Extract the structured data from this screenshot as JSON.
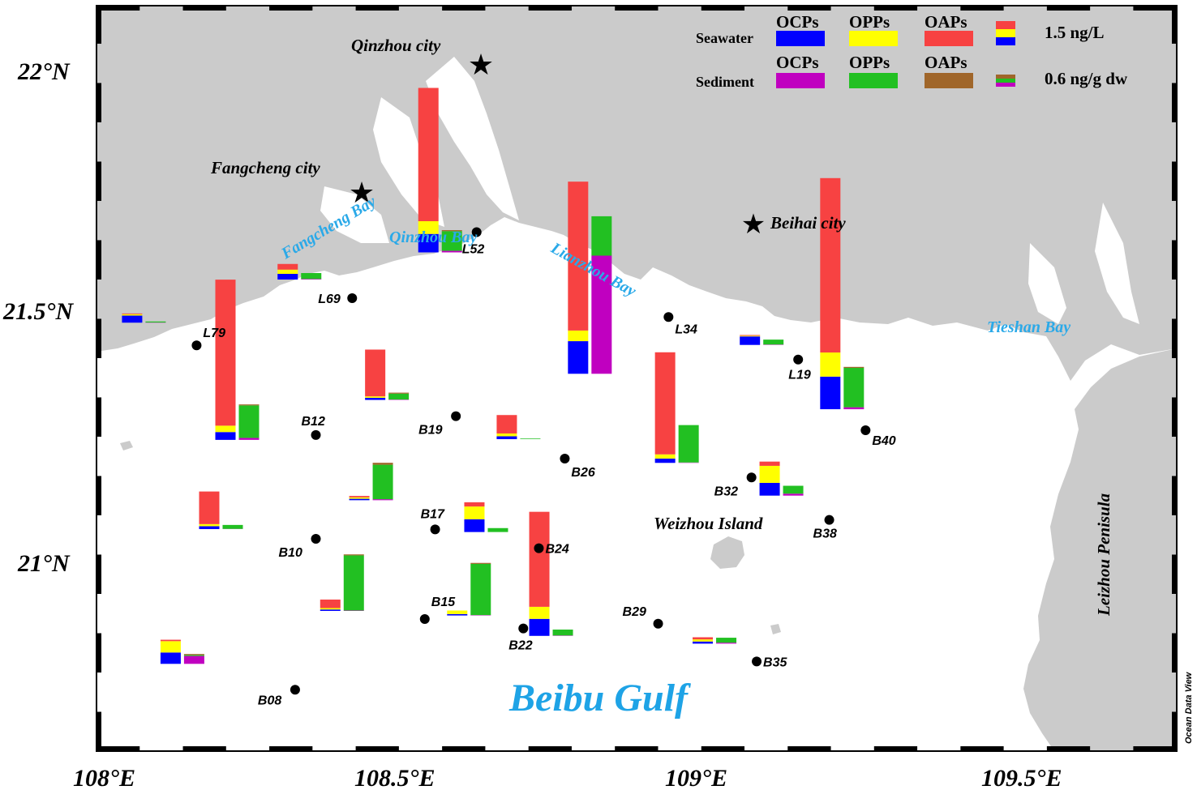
{
  "map": {
    "title_gulf": "Beibu Gulf",
    "watermark": "Ocean Data View",
    "lon_labels": [
      "108°E",
      "108.5°E",
      "109°E",
      "109.5°E"
    ],
    "lat_labels": [
      "22°N",
      "21.5°N",
      "21°N"
    ],
    "lon_ticks": [
      108.0,
      108.5,
      109.0,
      109.5
    ],
    "lat_ticks": [
      22.0,
      21.5,
      21.0
    ],
    "extent": {
      "lon_min": 107.917,
      "lon_max": 110.0,
      "lat_min": 20.6,
      "lat_max": 22.18
    },
    "colors": {
      "land": "#cbcbcb",
      "sea": "#ffffff",
      "bay_label": "#2aa9e8",
      "gulf_label": "#1ea3e6"
    }
  },
  "cities": [
    {
      "name": "Qinzhou city",
      "lon": 108.62,
      "lat": 22.01
    },
    {
      "name": "Fangcheng city",
      "lon": 108.41,
      "lat": 21.74
    },
    {
      "name": "Beihai city",
      "lon": 109.08,
      "lat": 21.67
    }
  ],
  "places": {
    "bays": [
      "Fangcheng Bay",
      "Qinzhou Bay",
      "Lianzhou Bay",
      "Tieshan Bay"
    ],
    "island": "Weizhou Island",
    "peninsula": "Leizhou Penisula"
  },
  "legend": {
    "headers": [
      "OCPs",
      "OPPs",
      "OAPs"
    ],
    "rows": [
      {
        "label": "Seawater",
        "swatches": [
          "#0000ff",
          "#ffff00",
          "#f74242"
        ],
        "scale": "1.5 ng/L"
      },
      {
        "label": "Sediment",
        "swatches": [
          "#c000c0",
          "#22c022",
          "#a0662a"
        ],
        "scale": "0.6 ng/g dw"
      }
    ]
  },
  "chart_data": {
    "type": "bar",
    "units": {
      "seawater": "ng/L",
      "sediment": "ng/g dw"
    },
    "components": [
      "OCPs",
      "OPPs",
      "OAPs"
    ],
    "stations": [
      {
        "id": "L79",
        "lon": 108.11,
        "lat": 21.46,
        "seawater": [
          0.5,
          0.1,
          0.05
        ],
        "sediment": [
          0.01,
          0.05,
          0.0
        ]
      },
      {
        "id": "L69",
        "lon": 108.41,
        "lat": 21.56,
        "seawater": [
          0.4,
          0.3,
          0.4
        ],
        "sediment": [
          0.03,
          0.3,
          0.0
        ]
      },
      {
        "id": "L52",
        "lon": 108.65,
        "lat": 21.7,
        "seawater": [
          1.3,
          0.9,
          9.4
        ],
        "sediment": [
          0.08,
          1.0,
          0.05
        ]
      },
      {
        "id": "L34",
        "lon": 109.02,
        "lat": 21.52,
        "seawater": [
          2.3,
          0.75,
          10.5
        ],
        "sediment": [
          6.0,
          2.0,
          0.0
        ]
      },
      {
        "id": "L19",
        "lon": 109.27,
        "lat": 21.43,
        "seawater": [
          0.6,
          0.05,
          0.05
        ],
        "sediment": [
          0.02,
          0.25,
          0.0
        ]
      },
      {
        "id": "B12",
        "lon": 108.34,
        "lat": 21.27,
        "seawater": [
          0.55,
          0.45,
          10.3
        ],
        "sediment": [
          0.1,
          1.65,
          0.05
        ]
      },
      {
        "id": "B19",
        "lon": 108.61,
        "lat": 21.31,
        "seawater": [
          0.15,
          0.1,
          3.3
        ],
        "sediment": [
          0.02,
          0.3,
          0.05
        ]
      },
      {
        "id": "B26",
        "lon": 108.82,
        "lat": 21.22,
        "seawater": [
          0.2,
          0.2,
          1.3
        ],
        "sediment": [
          0.0,
          0.03,
          0.0
        ]
      },
      {
        "id": "B32",
        "lon": 109.18,
        "lat": 21.18,
        "seawater": [
          0.3,
          0.3,
          7.2
        ],
        "sediment": [
          0.02,
          1.9,
          0.0
        ]
      },
      {
        "id": "B40",
        "lon": 109.4,
        "lat": 21.28,
        "seawater": [
          2.3,
          1.7,
          12.3
        ],
        "sediment": [
          0.1,
          2.0,
          0.05
        ]
      },
      {
        "id": "B10",
        "lon": 108.34,
        "lat": 21.05,
        "seawater": [
          0.2,
          0.15,
          2.3
        ],
        "sediment": [
          0.01,
          0.2,
          0.0
        ]
      },
      {
        "id": "B17",
        "lon": 108.57,
        "lat": 21.07,
        "seawater": [
          0.1,
          0.1,
          0.1
        ],
        "sediment": [
          0.05,
          1.75,
          0.1
        ]
      },
      {
        "id": "B24",
        "lon": 108.77,
        "lat": 21.03,
        "seawater": [
          0.9,
          0.9,
          0.3
        ],
        "sediment": [
          0.0,
          0.2,
          0.0
        ]
      },
      {
        "id": "B38",
        "lon": 109.33,
        "lat": 21.09,
        "seawater": [
          0.9,
          1.2,
          0.3
        ],
        "sediment": [
          0.1,
          0.4,
          0.0
        ]
      },
      {
        "id": "B15",
        "lon": 108.55,
        "lat": 20.88,
        "seawater": [
          0.1,
          0.1,
          0.6
        ],
        "sediment": [
          0.02,
          2.8,
          0.05
        ]
      },
      {
        "id": "B22",
        "lon": 108.74,
        "lat": 20.86,
        "seawater": [
          0.1,
          0.25,
          0.0
        ],
        "sediment": [
          0.02,
          2.6,
          0.05
        ]
      },
      {
        "id": "B29",
        "lon": 109.0,
        "lat": 20.87,
        "seawater": [
          1.2,
          0.85,
          6.7
        ],
        "sediment": [
          0.02,
          0.3,
          0.0
        ]
      },
      {
        "id": "B35",
        "lon": 109.19,
        "lat": 20.79,
        "seawater": [
          0.15,
          0.15,
          0.15
        ],
        "sediment": [
          0.05,
          0.25,
          0.0
        ]
      },
      {
        "id": "B08",
        "lon": 108.3,
        "lat": 20.73,
        "seawater": [
          0.8,
          0.8,
          0.1
        ],
        "sediment": [
          0.4,
          0.05,
          0.05
        ]
      }
    ]
  }
}
